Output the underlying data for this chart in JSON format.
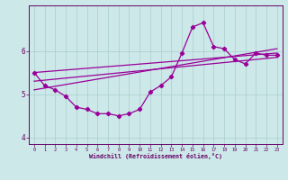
{
  "xlabel": "Windchill (Refroidissement éolien,°C)",
  "x": [
    0,
    1,
    2,
    3,
    4,
    5,
    6,
    7,
    8,
    9,
    10,
    11,
    12,
    13,
    14,
    15,
    16,
    17,
    18,
    19,
    20,
    21,
    22,
    23
  ],
  "y_main": [
    5.5,
    5.2,
    5.1,
    4.95,
    4.7,
    4.65,
    4.55,
    4.55,
    4.5,
    4.55,
    4.65,
    5.05,
    5.2,
    5.4,
    5.95,
    6.55,
    6.65,
    6.1,
    6.05,
    5.8,
    5.7,
    5.95,
    5.9,
    5.9
  ],
  "trend1_x": [
    0,
    23
  ],
  "trend1_y": [
    5.5,
    5.95
  ],
  "trend2_x": [
    0,
    23
  ],
  "trend2_y": [
    5.3,
    5.85
  ],
  "trend3_x": [
    0,
    23
  ],
  "trend3_y": [
    5.1,
    6.05
  ],
  "ylim": [
    3.85,
    7.05
  ],
  "xlim": [
    -0.5,
    23.5
  ],
  "yticks": [
    4,
    5,
    6
  ],
  "xticks": [
    0,
    1,
    2,
    3,
    4,
    5,
    6,
    7,
    8,
    9,
    10,
    11,
    12,
    13,
    14,
    15,
    16,
    17,
    18,
    19,
    20,
    21,
    22,
    23
  ],
  "line_color": "#990099",
  "bg_color": "#cce8e8",
  "grid_color": "#aacece",
  "text_color": "#660066",
  "markersize": 2.2,
  "linewidth": 0.9
}
